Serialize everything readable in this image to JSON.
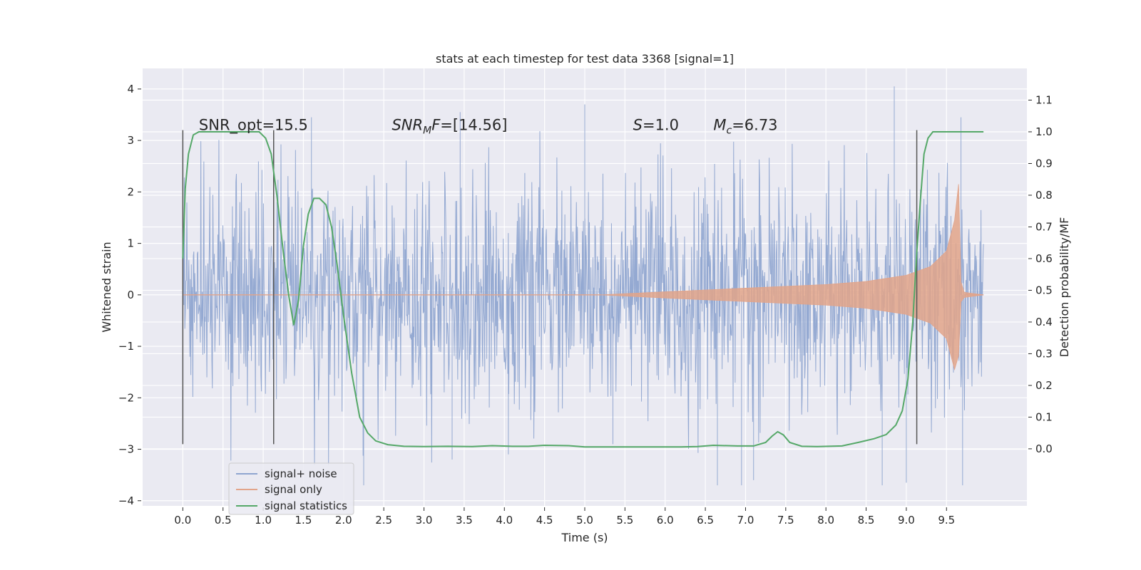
{
  "chart_data": {
    "type": "line",
    "title": "stats at each timestep for test data 3368 [signal=1]",
    "xlabel": "Time (s)",
    "ylabel": "Whitened strain",
    "y2label": "Detection probability/MF",
    "xlim": [
      -0.5,
      10.5
    ],
    "ylim": [
      -4.1,
      4.4
    ],
    "y2lim": [
      -0.18,
      1.2
    ],
    "xticks": [
      0.0,
      0.5,
      1.0,
      1.5,
      2.0,
      2.5,
      3.0,
      3.5,
      4.0,
      4.5,
      5.0,
      5.5,
      6.0,
      6.5,
      7.0,
      7.5,
      8.0,
      8.5,
      9.0,
      9.5
    ],
    "xtick_labels": [
      "0.0",
      "0.5",
      "1.0",
      "1.5",
      "2.0",
      "2.5",
      "3.0",
      "3.5",
      "4.0",
      "4.5",
      "5.0",
      "5.5",
      "6.0",
      "6.5",
      "7.0",
      "7.5",
      "8.0",
      "8.5",
      "9.0",
      "9.5"
    ],
    "yticks": [
      -4,
      -3,
      -2,
      -1,
      0,
      1,
      2,
      3,
      4
    ],
    "ytick_labels": [
      "−4",
      "−3",
      "−2",
      "−1",
      "0",
      "1",
      "2",
      "3",
      "4"
    ],
    "y2ticks": [
      0.0,
      0.1,
      0.2,
      0.3,
      0.4,
      0.5,
      0.6,
      0.7,
      0.8,
      0.9,
      1.0,
      1.1
    ],
    "y2tick_labels": [
      "0.0",
      "0.1",
      "0.2",
      "0.3",
      "0.4",
      "0.5",
      "0.6",
      "0.7",
      "0.8",
      "0.9",
      "1.0",
      "1.1"
    ],
    "grid": true,
    "legend_position": "lower-left",
    "annotations": [
      {
        "id": "snr-opt",
        "text": "SNR_opt=15.5",
        "x": 0.2,
        "y": 3.2
      },
      {
        "id": "snr-mf",
        "text": "SNR",
        "sub": "M",
        "rest": "F=[14.56]",
        "x": 2.6,
        "y": 3.2
      },
      {
        "id": "s-val",
        "text": "S",
        "rest": "=1.0",
        "x": 5.6,
        "y": 3.2
      },
      {
        "id": "mc-val",
        "text": "M",
        "sub": "c",
        "rest": "=6.73",
        "x": 6.6,
        "y": 3.2
      }
    ],
    "vlines": [
      {
        "x": 0.0,
        "ymin": -2.9,
        "ymax": 3.2
      },
      {
        "x": 1.13,
        "ymin": -2.9,
        "ymax": 3.2
      },
      {
        "x": 9.13,
        "ymin": -2.9,
        "ymax": 3.2
      }
    ],
    "series": [
      {
        "name": "signal+ noise",
        "color": "#8fa5d0",
        "axis": "left",
        "x_range": [
          0.0,
          9.96
        ],
        "samples": 1600,
        "envelope_typical": 1.7,
        "notable_peaks": [
          {
            "x": 1.6,
            "y": 3.45
          },
          {
            "x": 3.45,
            "y": 3.55
          },
          {
            "x": 5.0,
            "y": 3.7
          },
          {
            "x": 8.85,
            "y": 4.05
          },
          {
            "x": 9.68,
            "y": 3.45
          },
          {
            "x": 2.25,
            "y": -3.7
          },
          {
            "x": 3.35,
            "y": -3.2
          },
          {
            "x": 4.05,
            "y": -3.1
          },
          {
            "x": 6.65,
            "y": -3.7
          },
          {
            "x": 6.95,
            "y": -3.7
          },
          {
            "x": 7.1,
            "y": -3.6
          },
          {
            "x": 8.7,
            "y": -3.7
          },
          {
            "x": 9.0,
            "y": -3.65
          },
          {
            "x": 9.7,
            "y": -3.7
          },
          {
            "x": 5.35,
            "y": -2.9
          }
        ]
      },
      {
        "name": "signal only",
        "color": "#e2a48a",
        "axis": "left",
        "chirp_start": 5.2,
        "merger_time": 9.65,
        "amplitude_points": [
          [
            5.2,
            0.0
          ],
          [
            6.0,
            0.06
          ],
          [
            7.0,
            0.13
          ],
          [
            8.0,
            0.2
          ],
          [
            8.5,
            0.26
          ],
          [
            9.0,
            0.38
          ],
          [
            9.3,
            0.55
          ],
          [
            9.5,
            0.85
          ],
          [
            9.6,
            1.45
          ],
          [
            9.65,
            2.15
          ],
          [
            9.68,
            0.25
          ],
          [
            9.72,
            0.05
          ],
          [
            9.96,
            0.0
          ]
        ]
      },
      {
        "name": "signal statistics",
        "color": "#55a868",
        "axis": "right",
        "x": [
          0.0,
          0.03,
          0.07,
          0.13,
          0.2,
          0.3,
          0.5,
          0.8,
          0.95,
          1.03,
          1.1,
          1.17,
          1.25,
          1.32,
          1.38,
          1.44,
          1.5,
          1.56,
          1.63,
          1.7,
          1.78,
          1.85,
          1.92,
          2.0,
          2.1,
          2.2,
          2.3,
          2.4,
          2.55,
          2.75,
          3.0,
          3.3,
          3.6,
          3.85,
          4.1,
          4.3,
          4.5,
          4.8,
          5.0,
          5.3,
          5.6,
          5.9,
          6.2,
          6.4,
          6.6,
          6.9,
          7.1,
          7.25,
          7.33,
          7.4,
          7.47,
          7.55,
          7.7,
          7.9,
          8.2,
          8.4,
          8.6,
          8.75,
          8.87,
          8.95,
          9.02,
          9.08,
          9.13,
          9.18,
          9.22,
          9.27,
          9.33,
          9.45,
          9.6,
          9.8,
          9.96
        ],
        "y": [
          0.6,
          0.82,
          0.93,
          0.99,
          1.0,
          1.0,
          1.0,
          1.0,
          1.0,
          0.98,
          0.93,
          0.8,
          0.62,
          0.48,
          0.39,
          0.47,
          0.64,
          0.74,
          0.79,
          0.79,
          0.77,
          0.7,
          0.58,
          0.42,
          0.24,
          0.1,
          0.05,
          0.025,
          0.013,
          0.008,
          0.007,
          0.008,
          0.007,
          0.01,
          0.008,
          0.008,
          0.011,
          0.01,
          0.006,
          0.006,
          0.006,
          0.006,
          0.006,
          0.007,
          0.011,
          0.009,
          0.009,
          0.02,
          0.04,
          0.054,
          0.044,
          0.02,
          0.008,
          0.007,
          0.009,
          0.02,
          0.032,
          0.045,
          0.075,
          0.12,
          0.22,
          0.4,
          0.62,
          0.8,
          0.93,
          0.98,
          1.0,
          1.0,
          1.0,
          1.0,
          1.0
        ]
      }
    ]
  }
}
